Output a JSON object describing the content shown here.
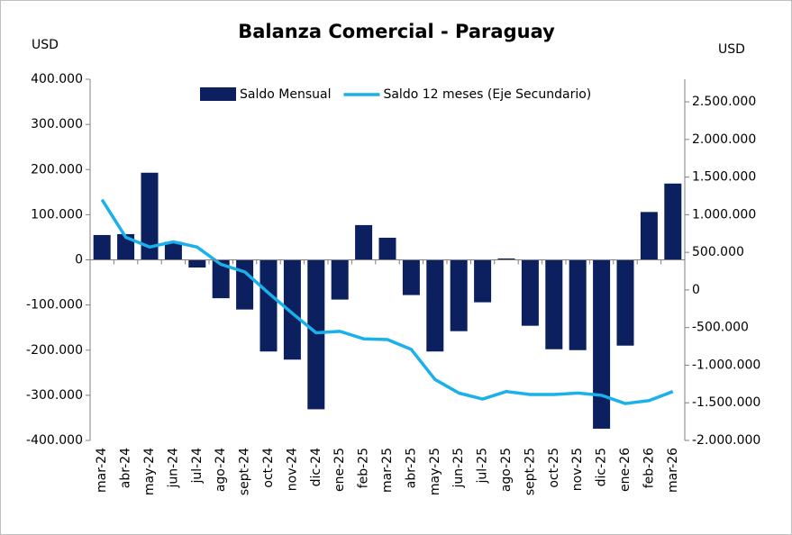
{
  "chart_data": {
    "type": "bar-line",
    "title": "Balanza Comercial - Paraguay",
    "y_label": "USD",
    "y2_label": "USD",
    "categories": [
      "mar-24",
      "abr-24",
      "may-24",
      "jun-24",
      "jul-24",
      "ago-24",
      "sept-24",
      "oct-24",
      "nov-24",
      "dic-24",
      "ene-25",
      "feb-25",
      "mar-25",
      "abr-25",
      "may-25",
      "jun-25",
      "jul-25",
      "ago-25",
      "sept-25",
      "oct-25",
      "nov-25",
      "dic-25",
      "ene-26",
      "feb-26",
      "mar-26"
    ],
    "series": [
      {
        "name": "Saldo Mensual",
        "type": "bar",
        "color": "#0c1f5e",
        "values": [
          55000,
          57000,
          193000,
          40000,
          -17000,
          -85000,
          -110000,
          -203000,
          -221000,
          -331000,
          -88000,
          77000,
          49000,
          -78000,
          -203000,
          -158000,
          -94000,
          3000,
          -146000,
          -198000,
          -200000,
          -374000,
          -190000,
          106000,
          169000
        ]
      },
      {
        "name": "Saldo 12 meses (Eje Secundario)",
        "type": "line",
        "axis": "y2",
        "color": "#1ab0ea",
        "values": [
          1200000,
          700000,
          570000,
          640000,
          570000,
          340000,
          240000,
          -40000,
          -310000,
          -570000,
          -550000,
          -650000,
          -660000,
          -790000,
          -1190000,
          -1370000,
          -1450000,
          -1350000,
          -1390000,
          -1390000,
          -1370000,
          -1400000,
          -1510000,
          -1470000,
          -1350000
        ]
      }
    ],
    "ylim": [
      -400000,
      400000
    ],
    "yticks": [
      {
        "value": -400000,
        "label": "-400.000"
      },
      {
        "value": -300000,
        "label": "-300.000"
      },
      {
        "value": -200000,
        "label": "-200.000"
      },
      {
        "value": -100000,
        "label": "-100.000"
      },
      0,
      {
        "value": 100000,
        "label": "100.000"
      },
      {
        "value": 200000,
        "label": "200.000"
      },
      {
        "value": 300000,
        "label": "300.000"
      },
      {
        "value": 400000,
        "label": "400.000"
      }
    ],
    "y2lim": [
      -2000000,
      2800000
    ],
    "y2ticks": [
      {
        "value": -2000000,
        "label": "-2.000.000"
      },
      {
        "value": -1500000,
        "label": "-1.500.000"
      },
      {
        "value": -1000000,
        "label": "-1.000.000"
      },
      {
        "value": -500000,
        "label": "-500.000"
      },
      0,
      {
        "value": 500000,
        "label": "500.000"
      },
      {
        "value": 1000000,
        "label": "1.000.000"
      },
      {
        "value": 1500000,
        "label": "1.500.000"
      },
      {
        "value": 2000000,
        "label": "2.000.000"
      },
      {
        "value": 2500000,
        "label": "2.500.000"
      }
    ],
    "legend": "top"
  }
}
